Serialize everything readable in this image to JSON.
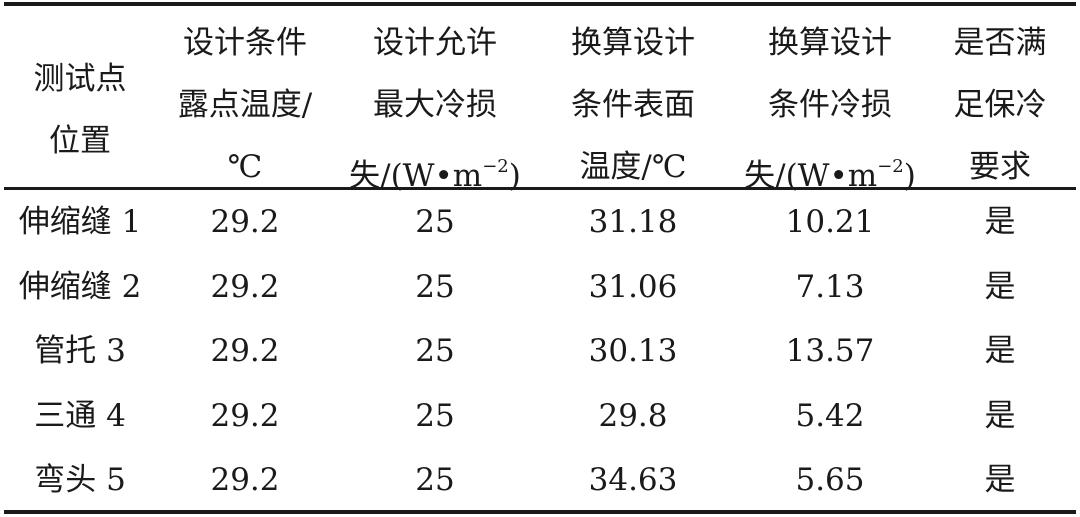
{
  "table": {
    "headers": [
      {
        "lines": [
          "测试点",
          "位置"
        ]
      },
      {
        "lines": [
          "设计条件",
          "露点温度/",
          "℃"
        ]
      },
      {
        "lines": [
          "设计允许",
          "最大冷损"
        ],
        "unit": {
          "pre": "失/(W•m",
          "sup": "−2",
          "post": ")"
        }
      },
      {
        "lines": [
          "换算设计",
          "条件表面",
          "温度/℃"
        ]
      },
      {
        "lines": [
          "换算设计",
          "条件冷损"
        ],
        "unit": {
          "pre": "失/(W•m",
          "sup": "−2",
          "post": ")"
        }
      },
      {
        "lines": [
          "是否满",
          "足保冷",
          "要求"
        ]
      }
    ],
    "rows": [
      [
        "伸缩缝 1",
        "29.2",
        "25",
        "31.18",
        "10.21",
        "是"
      ],
      [
        "伸缩缝 2",
        "29.2",
        "25",
        "31.06",
        "7.13",
        "是"
      ],
      [
        "管托 3",
        "29.2",
        "25",
        "30.13",
        "13.57",
        "是"
      ],
      [
        "三通 4",
        "29.2",
        "25",
        "29.8",
        "5.42",
        "是"
      ],
      [
        "弯头 5",
        "29.2",
        "25",
        "34.63",
        "5.65",
        "是"
      ]
    ]
  }
}
